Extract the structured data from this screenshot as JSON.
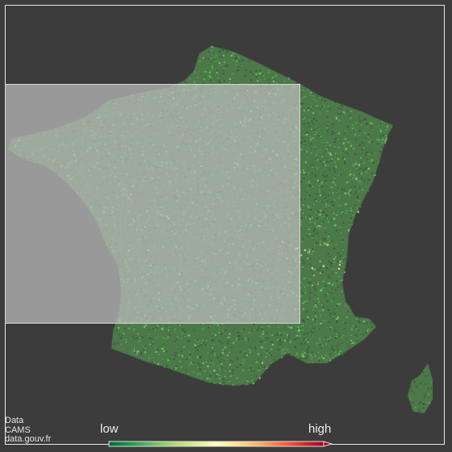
{
  "map": {
    "region": "France",
    "colors": {
      "background": "#3c3c3c",
      "frame": "#e8e8e8",
      "selection_fill": "#bebebe",
      "low": "#1a9850",
      "mid": "#ffffbf",
      "high": "#a50026"
    },
    "selection_active": true
  },
  "attribution": {
    "line1": "Data",
    "line2": "CAMS",
    "line3": "data.gouv.fr"
  },
  "legend": {
    "low_label": "low",
    "high_label": "high",
    "gradient": [
      "#006837",
      "#1a9850",
      "#66bd63",
      "#a6d96a",
      "#d9ef8b",
      "#ffffbf",
      "#fee08b",
      "#fdae61",
      "#f46d43",
      "#d73027",
      "#a50026"
    ]
  }
}
